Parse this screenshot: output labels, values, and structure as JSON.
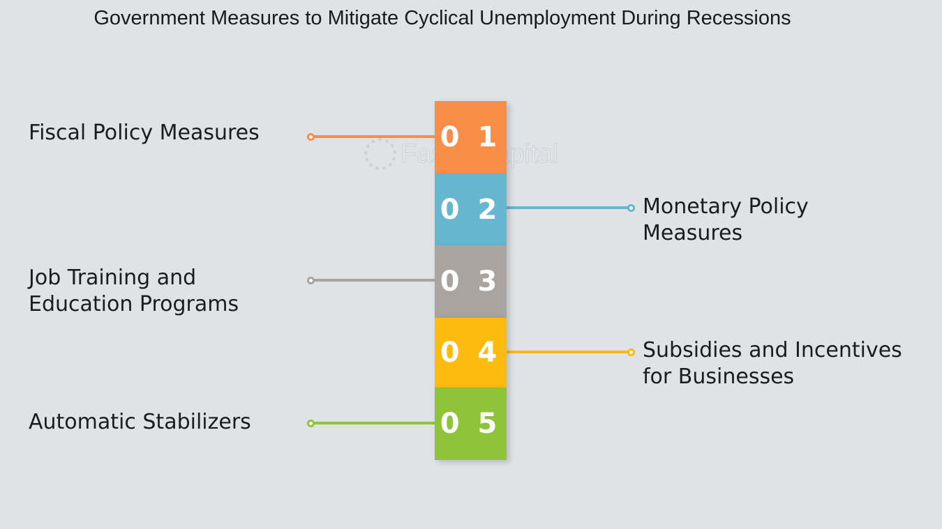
{
  "title": "Government Measures to Mitigate Cyclical Unemployment During Recessions",
  "watermark": "FasterCapital",
  "steps": [
    {
      "number": "0 1",
      "label_lines": [
        "Fiscal Policy Measures"
      ],
      "side": "left",
      "color": "#f98e48"
    },
    {
      "number": "0 2",
      "label_lines": [
        "Monetary Policy",
        "Measures"
      ],
      "side": "right",
      "color": "#66b6cf"
    },
    {
      "number": "0 3",
      "label_lines": [
        "Job Training and",
        "Education Programs"
      ],
      "side": "left",
      "color": "#aba3a0"
    },
    {
      "number": "0 4",
      "label_lines": [
        "Subsidies and Incentives",
        "for Businesses"
      ],
      "side": "right",
      "color": "#fdbb0f"
    },
    {
      "number": "0 5",
      "label_lines": [
        "Automatic Stabilizers"
      ],
      "side": "left",
      "color": "#8fc43a"
    }
  ]
}
